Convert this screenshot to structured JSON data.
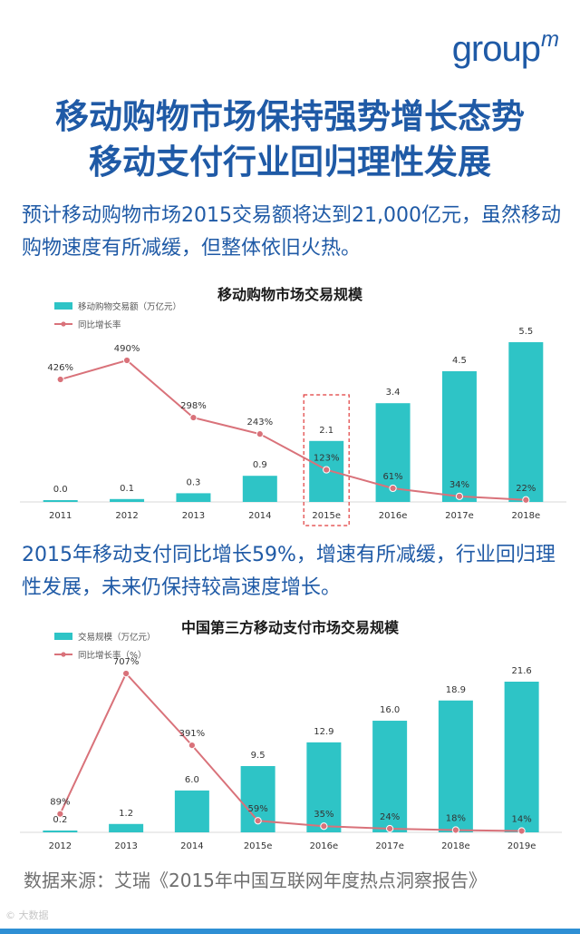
{
  "logo": {
    "text": "group",
    "sup": "m"
  },
  "headline": {
    "line1": "移动购物市场保持强势增长态势",
    "line2": "移动支付行业回归理性发展"
  },
  "paragraph1": "预计移动购物市场2015交易额将达到21,000亿元，虽然移动购物速度有所减缓，但整体依旧火热。",
  "paragraph2": "2015年移动支付同比增长59%，增速有所减缓，行业回归理性发展，未来仍保持较高速度增长。",
  "source": "数据来源：艾瑞《2015年中国互联网年度热点洞察报告》",
  "watermark": "© 大数据",
  "colors": {
    "accent": "#1f5aa6",
    "bar": "#2ec4c6",
    "line": "#d9727a",
    "highlight": "#e03a3a"
  },
  "chart_data": [
    {
      "type": "bar",
      "title": "移动购物市场交易规模",
      "categories": [
        "2011",
        "2012",
        "2013",
        "2014",
        "2015e",
        "2016e",
        "2017e",
        "2018e"
      ],
      "series": [
        {
          "name": "移动购物交易额（万亿元）",
          "type": "bar",
          "values": [
            0.0,
            0.1,
            0.3,
            0.9,
            2.1,
            3.4,
            4.5,
            5.5
          ],
          "labels": [
            "0.0",
            "0.1",
            "0.3",
            "0.9",
            "2.1",
            "3.4",
            "4.5",
            "5.5"
          ]
        },
        {
          "name": "同比增长率",
          "type": "line",
          "values": [
            426,
            490,
            298,
            243,
            123,
            61,
            34,
            22
          ],
          "labels": [
            "426%",
            "490%",
            "298%",
            "243%",
            "123%",
            "61%",
            "34%",
            "22%"
          ]
        }
      ],
      "ylim_bar": [
        0,
        5.5
      ],
      "ylim_line": [
        0,
        490
      ],
      "highlight_category": "2015e",
      "legend_position": "top-left",
      "grid": false
    },
    {
      "type": "bar",
      "title": "中国第三方移动支付市场交易规模",
      "categories": [
        "2012",
        "2013",
        "2014",
        "2015e",
        "2016e",
        "2017e",
        "2018e",
        "2019e"
      ],
      "series": [
        {
          "name": "交易规模（万亿元）",
          "type": "bar",
          "values": [
            0.2,
            1.2,
            6.0,
            9.5,
            12.9,
            16.0,
            18.9,
            21.6
          ],
          "labels": [
            "0.2",
            "1.2",
            "6.0",
            "9.5",
            "12.9",
            "16.0",
            "18.9",
            "21.6"
          ]
        },
        {
          "name": "同比增长率（%）",
          "type": "line",
          "values": [
            89,
            707,
            391,
            59,
            35,
            24,
            18,
            14
          ],
          "labels": [
            "89%",
            "707%",
            "391%",
            "59%",
            "35%",
            "24%",
            "18%",
            "14%"
          ]
        }
      ],
      "ylim_bar": [
        0,
        21.6
      ],
      "ylim_line": [
        0,
        707
      ],
      "legend_position": "top-left",
      "grid": false
    }
  ]
}
